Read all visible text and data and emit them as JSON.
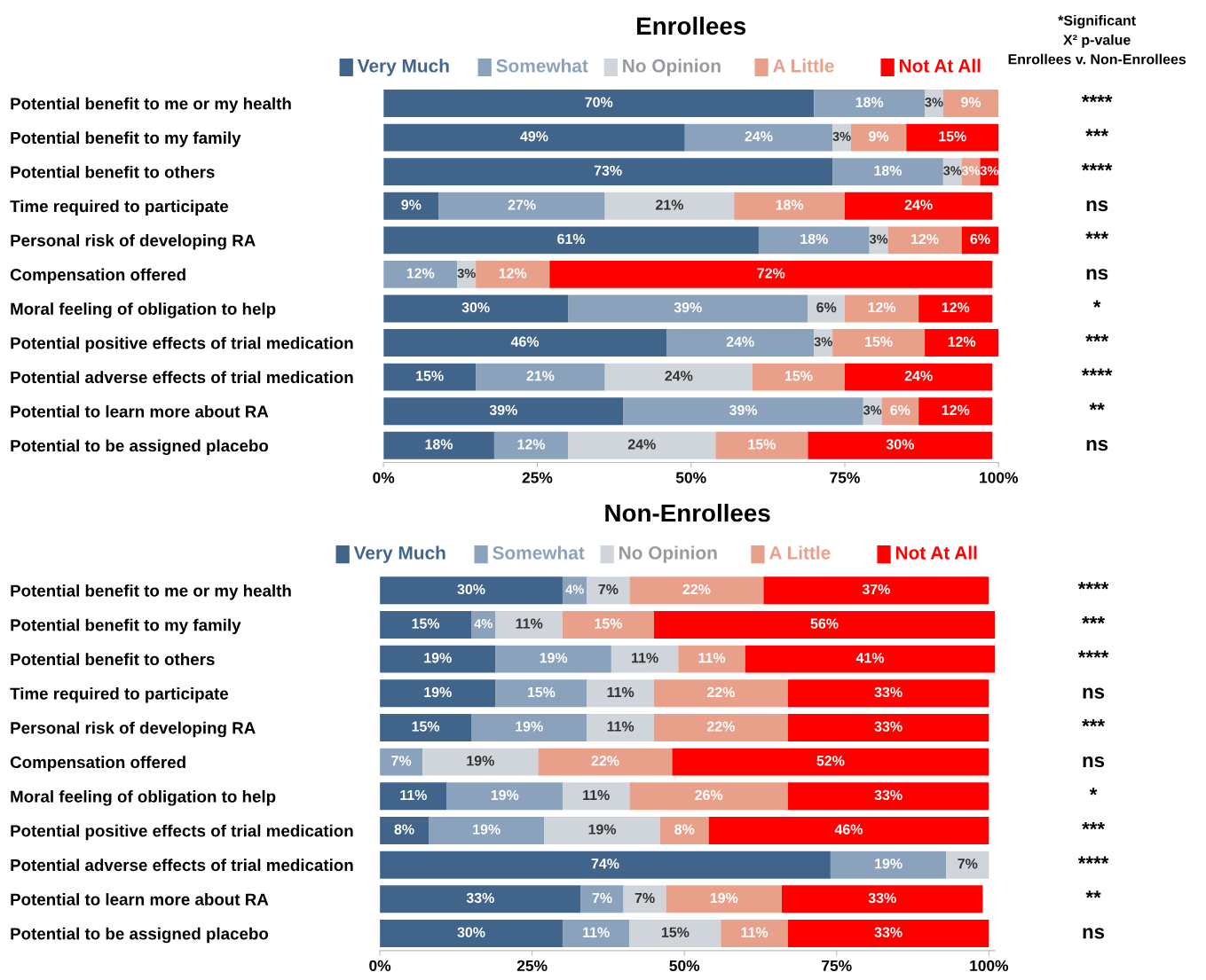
{
  "chart_data": [
    {
      "type": "bar",
      "orientation": "horizontal",
      "stacked": true,
      "title": "Enrollees",
      "legend": "top",
      "xlim": [
        0,
        100
      ],
      "xticks": [
        {
          "value": 0,
          "label": "0%"
        },
        {
          "value": 25,
          "label": "25%"
        },
        {
          "value": 50,
          "label": "50%"
        },
        {
          "value": 75,
          "label": "75%"
        },
        {
          "value": 100,
          "label": "100%"
        }
      ],
      "categories": [
        "Potential benefit to me or my health",
        "Potential benefit to my family",
        "Potential benefit to others",
        "Time required to participate",
        "Personal risk of developing RA",
        "Compensation offered",
        "Moral feeling of obligation to help",
        "Potential positive effects of trial medication",
        "Potential adverse effects of trial medication",
        "Potential to learn more about RA",
        "Potential to be assigned placebo"
      ],
      "series": [
        {
          "name": "Very Much",
          "color": "#41658a",
          "values": [
            70,
            49,
            73,
            9,
            61,
            null,
            30,
            46,
            15,
            39,
            18
          ],
          "value_labels": [
            "70%",
            "49%",
            "73%",
            "9%",
            "61%",
            null,
            "30%",
            "46%",
            "15%",
            "39%",
            "18%"
          ]
        },
        {
          "name": "Somewhat",
          "color": "#8aa2bc",
          "values": [
            18,
            24,
            18,
            27,
            18,
            12,
            39,
            24,
            21,
            39,
            12
          ],
          "value_labels": [
            "18%",
            "24%",
            "18%",
            "27%",
            "18%",
            "12%",
            "39%",
            "24%",
            "21%",
            "39%",
            "12%"
          ]
        },
        {
          "name": "No Opinion",
          "color": "#d0d5db",
          "values": [
            3,
            3,
            3,
            21,
            3,
            3,
            6,
            3,
            24,
            3,
            24
          ],
          "value_labels": [
            "3%",
            "3%",
            "3%",
            "21%",
            "3%",
            "3%",
            "6%",
            "3%",
            "24%",
            "3%",
            "24%"
          ]
        },
        {
          "name": "A Little",
          "color": "#e8a08a",
          "values": [
            9,
            9,
            3,
            18,
            12,
            12,
            12,
            15,
            15,
            6,
            15
          ],
          "value_labels": [
            "9%",
            "9%",
            "3%",
            "18%",
            "12%",
            "12%",
            "12%",
            "15%",
            "15%",
            "6%",
            "15%"
          ]
        },
        {
          "name": "Not At All",
          "color": "#ff0000",
          "values": [
            null,
            15,
            3,
            24,
            6,
            72,
            12,
            12,
            24,
            12,
            30
          ],
          "value_labels": [
            null,
            "15%",
            "3%",
            "24%",
            "6%",
            "72%",
            "12%",
            "12%",
            "24%",
            "12%",
            "30%"
          ]
        }
      ],
      "annotations": [
        "*Significant\nX² p-value\nEnrollees v. Non-Enrollees",
        "****",
        "***",
        "****",
        "ns",
        "***",
        "ns",
        "*",
        "***",
        "****",
        "**",
        "ns"
      ]
    },
    {
      "type": "bar",
      "orientation": "horizontal",
      "stacked": true,
      "title": "Non-Enrollees",
      "legend": "top",
      "xlim": [
        0,
        101
      ],
      "xticks": [
        {
          "value": 0,
          "label": "0%"
        },
        {
          "value": 25,
          "label": "25%"
        },
        {
          "value": 50,
          "label": "50%"
        },
        {
          "value": 75,
          "label": "75%"
        },
        {
          "value": 100,
          "label": "100%"
        }
      ],
      "categories": [
        "Potential benefit to me or my health",
        "Potential benefit to my family",
        "Potential benefit to others",
        "Time required to participate",
        "Personal risk of developing RA",
        "Compensation offered",
        "Moral feeling of obligation to help",
        "Potential positive effects of trial medication",
        "Potential adverse effects of trial medication",
        "Potential to learn more about RA",
        "Potential to be assigned placebo"
      ],
      "series": [
        {
          "name": "Very Much",
          "color": "#41658a",
          "values": [
            30,
            15,
            19,
            19,
            15,
            null,
            11,
            8,
            74,
            33,
            30
          ],
          "value_labels": [
            "30%",
            "15%",
            "19%",
            "19%",
            "15%",
            null,
            "11%",
            "8%",
            "74%",
            "33%",
            "30%"
          ]
        },
        {
          "name": "Somewhat",
          "color": "#8aa2bc",
          "values": [
            4,
            4,
            19,
            15,
            19,
            7,
            19,
            19,
            19,
            7,
            11
          ],
          "value_labels": [
            "4%",
            "4%",
            "19%",
            "15%",
            "19%",
            "7%",
            "19%",
            "19%",
            "19%",
            "7%",
            "11%"
          ]
        },
        {
          "name": "No Opinion",
          "color": "#d0d5db",
          "values": [
            7,
            11,
            11,
            11,
            11,
            19,
            11,
            19,
            7,
            7,
            15
          ],
          "value_labels": [
            "7%",
            "11%",
            "11%",
            "11%",
            "11%",
            "19%",
            "11%",
            "19%",
            "7%",
            "7%",
            "15%"
          ]
        },
        {
          "name": "A Little",
          "color": "#e8a08a",
          "values": [
            22,
            15,
            11,
            22,
            22,
            22,
            26,
            8,
            null,
            19,
            11
          ],
          "value_labels": [
            "22%",
            "15%",
            "11%",
            "22%",
            "22%",
            "22%",
            "26%",
            "8%",
            null,
            "19%",
            "11%"
          ]
        },
        {
          "name": "Not At All",
          "color": "#ff0000",
          "values": [
            37,
            56,
            41,
            33,
            33,
            52,
            33,
            46,
            null,
            33,
            33
          ],
          "value_labels": [
            "37%",
            "56%",
            "41%",
            "33%",
            "33%",
            "52%",
            "33%",
            "46%",
            null,
            "33%",
            "33%"
          ]
        }
      ],
      "annotations": [
        "****",
        "***",
        "****",
        "ns",
        "***",
        "ns",
        "*",
        "***",
        "****",
        "**",
        "ns"
      ]
    }
  ]
}
